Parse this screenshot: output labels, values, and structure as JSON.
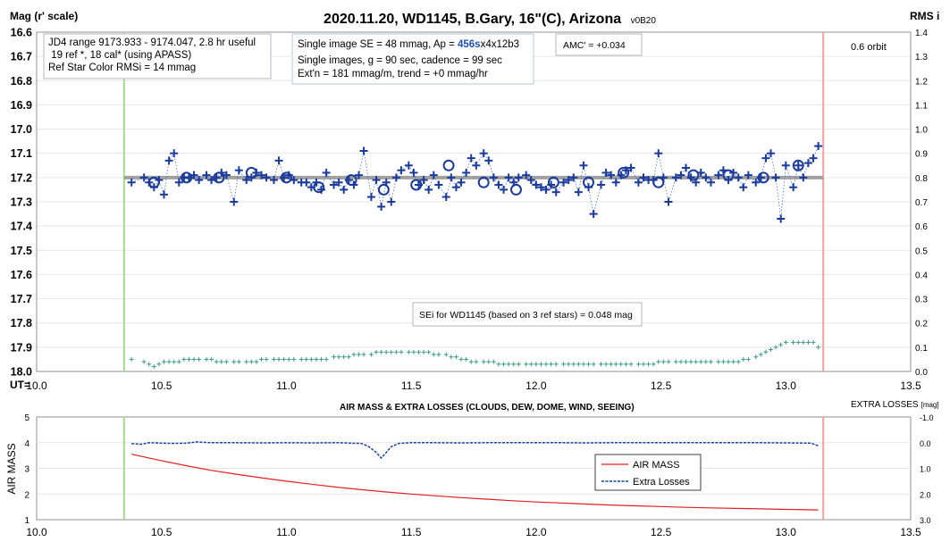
{
  "chart_data": [
    {
      "type": "scatter",
      "title": "2020.11.20, WD1145, B.Gary, 16\"(C), Arizona",
      "title_suffix": "v0B20",
      "ylabel_left": "Mag (r' scale)",
      "ylabel_right": "RMS i",
      "xlabel": "UT=",
      "xlim": [
        10.0,
        13.5
      ],
      "ylim_left": [
        16.6,
        18.0
      ],
      "ylim_right": [
        0.0,
        1.4
      ],
      "x_ticks": [
        "10.0",
        "10.5",
        "11.0",
        "11.5",
        "12.0",
        "12.5",
        "13.0",
        "13.5"
      ],
      "y_ticks_left": [
        "16.6",
        "16.7",
        "16.8",
        "16.9",
        "17.0",
        "17.1",
        "17.2",
        "17.3",
        "17.4",
        "17.5",
        "17.6",
        "17.7",
        "17.8",
        "17.9",
        "18.0"
      ],
      "y_ticks_right": [
        "1.4",
        "1.3",
        "1.2",
        "1.1",
        "1.0",
        "0.9",
        "0.8",
        "0.7",
        "0.6",
        "0.5",
        "0.4",
        "0.3",
        "0.2",
        "0.1",
        "0.0"
      ],
      "annotations": {
        "info_box": [
          "JD4 range 9173.933 - 9174.047, 2.8 hr useful",
          " 19 ref *, 18 cal* (using APASS)",
          "Ref Star Color RMSi = 14 mmag"
        ],
        "se_line1_a": "Single image SE = 48 mmag, Ap = ",
        "se_line1_b": "456s",
        "se_line1_c": "x4x12b3",
        "se_line2": "Single images, g = 90 sec, cadence = 99 sec",
        "se_line3": "Ext'n = 181 mmag/m, trend = +0 mmag/hr",
        "amc": "AMC' = +0.034",
        "orbit": "0.6 orbit",
        "sei": "SEi for WD1145 (based on 3 ref stars) = 0.048 mag"
      },
      "start_ut": 10.35,
      "end_ut": 13.15,
      "reference_level": 17.2,
      "series": [
        {
          "name": "",
          "marker": "plus",
          "x": [
            10.38,
            10.43,
            10.45,
            10.47,
            10.49,
            10.51,
            10.53,
            10.55,
            10.57,
            10.59,
            10.61,
            10.63,
            10.65,
            10.68,
            10.7,
            10.72,
            10.74,
            10.76,
            10.79,
            10.81,
            10.84,
            10.86,
            10.88,
            10.9,
            10.92,
            10.95,
            10.97,
            10.99,
            11.01,
            11.03,
            11.06,
            11.08,
            11.1,
            11.12,
            11.14,
            11.16,
            11.19,
            11.21,
            11.23,
            11.25,
            11.27,
            11.29,
            11.31,
            11.34,
            11.36,
            11.38,
            11.4,
            11.42,
            11.44,
            11.46,
            11.49,
            11.51,
            11.53,
            11.55,
            11.57,
            11.59,
            11.61,
            11.64,
            11.66,
            11.68,
            11.7,
            11.72,
            11.74,
            11.76,
            11.79,
            11.81,
            11.83,
            11.85,
            11.87,
            11.89,
            11.91,
            11.93,
            11.96,
            11.98,
            12.0,
            12.02,
            12.04,
            12.06,
            12.08,
            12.11,
            12.13,
            12.15,
            12.17,
            12.19,
            12.21,
            12.23,
            12.26,
            12.28,
            12.3,
            12.32,
            12.34,
            12.36,
            12.38,
            12.41,
            12.43,
            12.45,
            12.47,
            12.49,
            12.51,
            12.53,
            12.56,
            12.58,
            12.6,
            12.62,
            12.64,
            12.66,
            12.68,
            12.7,
            12.73,
            12.75,
            12.77,
            12.79,
            12.81,
            12.83,
            12.85,
            12.88,
            12.9,
            12.92,
            12.94,
            12.96,
            12.98,
            13.0,
            13.03,
            13.05,
            13.07,
            13.09,
            13.11,
            13.13
          ],
          "y": [
            17.22,
            17.2,
            17.22,
            17.24,
            17.21,
            17.27,
            17.13,
            17.1,
            17.22,
            17.2,
            17.2,
            17.19,
            17.21,
            17.19,
            17.21,
            17.2,
            17.18,
            17.19,
            17.3,
            17.17,
            17.21,
            17.2,
            17.18,
            17.19,
            17.2,
            17.21,
            17.13,
            17.2,
            17.19,
            17.21,
            17.22,
            17.22,
            17.24,
            17.22,
            17.25,
            17.18,
            17.23,
            17.22,
            17.25,
            17.21,
            17.23,
            17.19,
            17.09,
            17.28,
            17.21,
            17.32,
            17.22,
            17.3,
            17.2,
            17.17,
            17.15,
            17.18,
            17.23,
            17.21,
            17.25,
            17.19,
            17.23,
            17.28,
            17.2,
            17.24,
            17.22,
            17.18,
            17.12,
            17.15,
            17.1,
            17.13,
            17.2,
            17.23,
            17.25,
            17.2,
            17.22,
            17.2,
            17.19,
            17.21,
            17.23,
            17.24,
            17.25,
            17.23,
            17.26,
            17.22,
            17.21,
            17.2,
            17.26,
            17.15,
            17.24,
            17.35,
            17.23,
            17.18,
            17.19,
            17.22,
            17.19,
            17.17,
            17.16,
            17.22,
            17.2,
            17.21,
            17.21,
            17.1,
            17.2,
            17.3,
            17.2,
            17.19,
            17.16,
            17.2,
            17.22,
            17.18,
            17.2,
            17.22,
            17.19,
            17.17,
            17.21,
            17.18,
            17.2,
            17.24,
            17.19,
            17.22,
            17.2,
            17.12,
            17.1,
            17.2,
            17.37,
            17.15,
            17.24,
            17.15,
            17.2,
            17.14,
            17.12,
            17.07
          ]
        },
        {
          "name": "",
          "marker": "circle",
          "x": [
            10.47,
            10.6,
            10.73,
            10.86,
            11.0,
            11.13,
            11.26,
            11.39,
            11.52,
            11.65,
            11.79,
            11.92,
            12.07,
            12.21,
            12.35,
            12.49,
            12.63,
            12.77,
            12.91,
            13.05
          ],
          "y": [
            17.22,
            17.2,
            17.2,
            17.18,
            17.2,
            17.24,
            17.21,
            17.25,
            17.23,
            17.15,
            17.22,
            17.25,
            17.22,
            17.22,
            17.18,
            17.22,
            17.19,
            17.19,
            17.2,
            17.15
          ]
        },
        {
          "name": "",
          "marker": "small-plus",
          "axis": "right",
          "x": [
            10.38,
            10.43,
            10.45,
            10.47,
            10.49,
            10.51,
            10.53,
            10.55,
            10.57,
            10.59,
            10.61,
            10.63,
            10.65,
            10.68,
            10.7,
            10.72,
            10.74,
            10.76,
            10.79,
            10.81,
            10.84,
            10.86,
            10.88,
            10.9,
            10.92,
            10.95,
            10.97,
            10.99,
            11.01,
            11.03,
            11.06,
            11.08,
            11.1,
            11.12,
            11.14,
            11.16,
            11.19,
            11.21,
            11.23,
            11.25,
            11.27,
            11.29,
            11.31,
            11.34,
            11.36,
            11.38,
            11.4,
            11.42,
            11.44,
            11.46,
            11.49,
            11.51,
            11.53,
            11.55,
            11.57,
            11.59,
            11.61,
            11.64,
            11.66,
            11.68,
            11.7,
            11.72,
            11.74,
            11.76,
            11.79,
            11.81,
            11.83,
            11.85,
            11.87,
            11.89,
            11.91,
            11.93,
            11.96,
            11.98,
            12.0,
            12.02,
            12.04,
            12.06,
            12.08,
            12.11,
            12.13,
            12.15,
            12.17,
            12.19,
            12.21,
            12.23,
            12.26,
            12.28,
            12.3,
            12.32,
            12.34,
            12.36,
            12.38,
            12.41,
            12.43,
            12.45,
            12.47,
            12.49,
            12.51,
            12.53,
            12.56,
            12.58,
            12.6,
            12.62,
            12.64,
            12.66,
            12.68,
            12.7,
            12.73,
            12.75,
            12.77,
            12.79,
            12.81,
            12.83,
            12.85,
            12.88,
            12.9,
            12.92,
            12.94,
            12.96,
            12.98,
            13.0,
            13.03,
            13.05,
            13.07,
            13.09,
            13.11,
            13.13
          ],
          "y": [
            0.05,
            0.04,
            0.03,
            0.02,
            0.03,
            0.04,
            0.04,
            0.04,
            0.04,
            0.05,
            0.05,
            0.05,
            0.05,
            0.05,
            0.05,
            0.04,
            0.04,
            0.04,
            0.04,
            0.04,
            0.04,
            0.04,
            0.04,
            0.05,
            0.05,
            0.05,
            0.05,
            0.05,
            0.05,
            0.05,
            0.05,
            0.05,
            0.05,
            0.05,
            0.05,
            0.05,
            0.06,
            0.06,
            0.06,
            0.06,
            0.07,
            0.07,
            0.07,
            0.07,
            0.08,
            0.08,
            0.08,
            0.08,
            0.08,
            0.08,
            0.08,
            0.08,
            0.08,
            0.08,
            0.08,
            0.07,
            0.07,
            0.07,
            0.06,
            0.06,
            0.05,
            0.05,
            0.04,
            0.04,
            0.04,
            0.04,
            0.04,
            0.03,
            0.03,
            0.03,
            0.03,
            0.03,
            0.03,
            0.03,
            0.03,
            0.03,
            0.03,
            0.03,
            0.03,
            0.03,
            0.03,
            0.03,
            0.03,
            0.03,
            0.03,
            0.03,
            0.03,
            0.03,
            0.03,
            0.03,
            0.03,
            0.03,
            0.03,
            0.03,
            0.03,
            0.03,
            0.03,
            0.04,
            0.04,
            0.04,
            0.04,
            0.04,
            0.04,
            0.04,
            0.04,
            0.04,
            0.04,
            0.04,
            0.04,
            0.04,
            0.04,
            0.04,
            0.04,
            0.05,
            0.05,
            0.06,
            0.07,
            0.08,
            0.09,
            0.1,
            0.11,
            0.12,
            0.12,
            0.12,
            0.12,
            0.12,
            0.12,
            0.1
          ]
        }
      ]
    },
    {
      "type": "line",
      "title": "AIR MASS & EXTRA LOSSES (CLOUDS, DEW, DOME, WIND, SEEING)",
      "ylabel_left": "AIR MASS",
      "ylabel_right": "EXTRA LOSSES",
      "ylabel_right_unit": "[mag]",
      "xlim": [
        10.0,
        13.5
      ],
      "ylim_left": [
        1,
        5
      ],
      "ylim_right": [
        -1.0,
        3.0
      ],
      "x_ticks": [
        "10.0",
        "10.5",
        "11.0",
        "11.5",
        "12.0",
        "12.5",
        "13.0",
        "13.5"
      ],
      "y_ticks_left": [
        "5",
        "4",
        "3",
        "2",
        "1"
      ],
      "y_ticks_right": [
        "-1.0",
        "0.0",
        "1.0",
        "2.0",
        "3.0"
      ],
      "legend": [
        "AIR MASS",
        "Extra Losses"
      ],
      "series": [
        {
          "name": "AIR MASS",
          "x": [
            10.38,
            10.5,
            10.6,
            10.7,
            10.8,
            10.9,
            11.0,
            11.1,
            11.2,
            11.3,
            11.4,
            11.5,
            11.6,
            11.7,
            11.8,
            11.9,
            12.0,
            12.1,
            12.2,
            12.3,
            12.4,
            12.5,
            12.6,
            12.7,
            12.8,
            12.9,
            13.0,
            13.13
          ],
          "y": [
            3.55,
            3.3,
            3.1,
            2.92,
            2.77,
            2.63,
            2.5,
            2.38,
            2.27,
            2.17,
            2.08,
            2.0,
            1.93,
            1.86,
            1.8,
            1.74,
            1.69,
            1.65,
            1.61,
            1.57,
            1.54,
            1.51,
            1.48,
            1.46,
            1.44,
            1.42,
            1.4,
            1.38
          ]
        },
        {
          "name": "Extra Losses",
          "x": [
            10.38,
            10.42,
            10.45,
            10.5,
            10.55,
            10.6,
            10.64,
            10.7,
            10.8,
            10.9,
            11.0,
            11.1,
            11.2,
            11.3,
            11.33,
            11.36,
            11.38,
            11.4,
            11.42,
            11.45,
            11.5,
            11.6,
            11.7,
            11.8,
            11.9,
            12.0,
            12.1,
            12.2,
            12.3,
            12.4,
            12.5,
            12.6,
            12.7,
            12.8,
            12.9,
            13.0,
            13.1,
            13.13
          ],
          "y": [
            0.04,
            0.06,
            0.0,
            0.02,
            0.03,
            0.02,
            -0.03,
            0.0,
            0.0,
            0.01,
            0.0,
            0.01,
            0.0,
            0.03,
            0.15,
            0.38,
            0.6,
            0.38,
            0.15,
            0.03,
            0.0,
            0.0,
            0.01,
            0.0,
            0.0,
            0.0,
            0.0,
            0.01,
            0.0,
            0.0,
            0.0,
            0.0,
            0.0,
            0.0,
            0.0,
            0.01,
            0.02,
            0.12
          ]
        }
      ]
    }
  ]
}
